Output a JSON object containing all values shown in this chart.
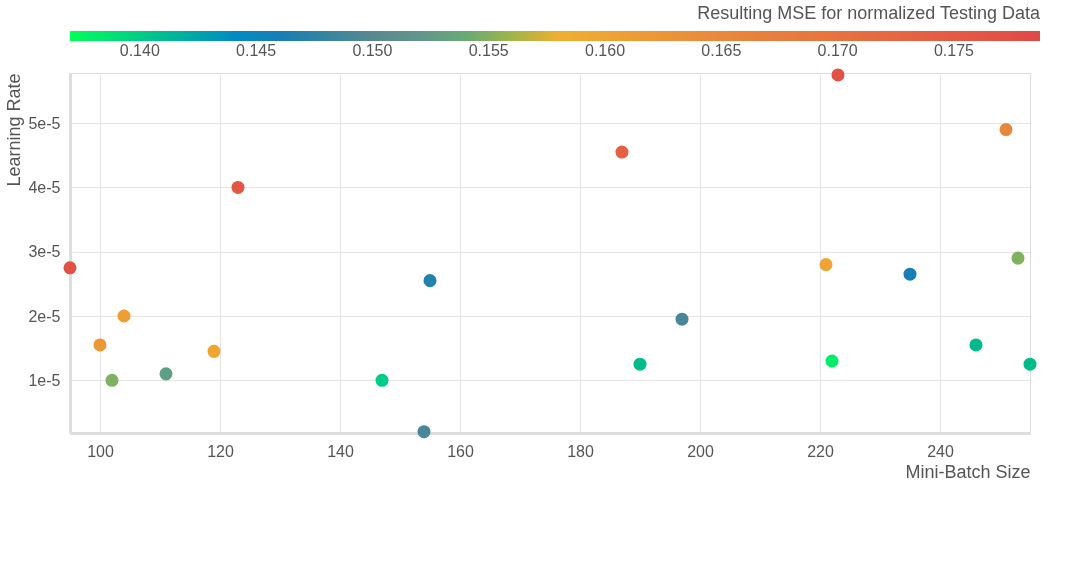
{
  "chart_data": {
    "type": "scatter",
    "xlabel": "Mini-Batch Size",
    "ylabel": "Learning Rate",
    "legend_title": "Resulting MSE for normalized Testing Data",
    "x": [
      95,
      100,
      104,
      102,
      111,
      119,
      123,
      147,
      155,
      154,
      187,
      190,
      197,
      221,
      223,
      222,
      235,
      251,
      253,
      246,
      255
    ],
    "values": [
      2.75e-05,
      1.55e-05,
      2e-05,
      1e-05,
      1.1e-05,
      1.45e-05,
      4e-05,
      1e-05,
      2.55e-05,
      2e-06,
      4.55e-05,
      1.25e-05,
      1.95e-05,
      2.8e-05,
      5.75e-05,
      1.3e-05,
      2.65e-05,
      4.9e-05,
      2.9e-05,
      1.55e-05,
      1.25e-05
    ],
    "cvalues": [
      0.177,
      0.162,
      0.161,
      0.155,
      0.153,
      0.16,
      0.176,
      0.14,
      0.147,
      0.149,
      0.174,
      0.141,
      0.149,
      0.16,
      0.177,
      0.138,
      0.146,
      0.165,
      0.155,
      0.141,
      0.141
    ],
    "clim": [
      0.137,
      0.1787
    ],
    "cticks": [
      {
        "value": 0.14,
        "label": "0.140"
      },
      0.145,
      {
        "value": 0.15,
        "label": "0.150"
      },
      0.155,
      {
        "value": 0.16,
        "label": "0.160"
      },
      0.165,
      {
        "value": 0.17,
        "label": "0.170"
      },
      0.175
    ],
    "xlim": [
      95,
      255
    ],
    "xticks": [
      100,
      120,
      140,
      160,
      180,
      200,
      220,
      240
    ],
    "ylim": [
      1.8e-06,
      5.78e-05
    ],
    "yticks": [
      {
        "value": 1e-05,
        "label": "1e-5"
      },
      {
        "value": 2e-05,
        "label": "2e-5"
      },
      {
        "value": 3e-05,
        "label": "3e-5"
      },
      {
        "value": 4e-05,
        "label": "4e-5"
      },
      {
        "value": 5e-05,
        "label": "5e-5"
      }
    ],
    "grid": true,
    "marker": "circle"
  }
}
